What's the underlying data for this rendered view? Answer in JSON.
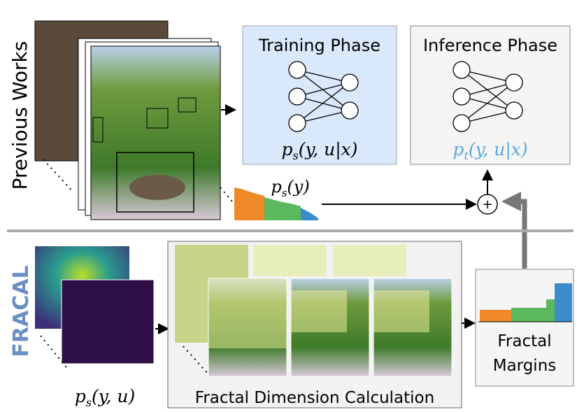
{
  "previous_works": {
    "side_label": "Previous Works",
    "training": {
      "title": "Training Phase",
      "formula": {
        "base": "p",
        "sub": "s",
        "args": "(y, u|x)"
      }
    },
    "inference": {
      "title": "Inference Phase",
      "formula": {
        "base": "p",
        "sub": "t",
        "args": "(y, u|x)"
      }
    },
    "prior": {
      "base": "p",
      "sub": "s",
      "args": "(y)"
    },
    "combine": "+"
  },
  "fracal": {
    "side_label": "FRACAL",
    "joint": {
      "base": "p",
      "sub": "s",
      "args": "(y, u)"
    },
    "fractal_caption": "Fractal Dimension Calculation",
    "margins": [
      "Fractal",
      "Margins"
    ]
  }
}
